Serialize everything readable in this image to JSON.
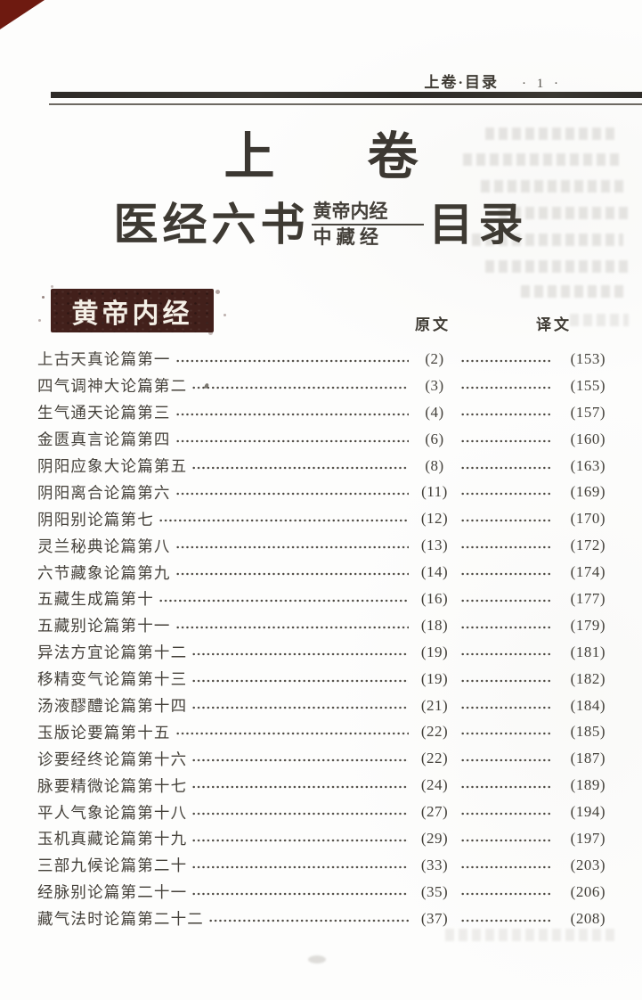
{
  "header": {
    "section_label": "上卷·目录",
    "page_number": "· 1 ·"
  },
  "volume_title": {
    "char_left": "上",
    "char_right": "卷"
  },
  "book_title": {
    "main": "医经六书",
    "annotation_line1": "黄帝内经",
    "annotation_line2": "中 藏 经",
    "tail": "目录"
  },
  "section_banner": {
    "label": "黄帝内经"
  },
  "columns": {
    "original": "原文",
    "translation": "译文"
  },
  "toc": {
    "entries": [
      {
        "title": "上古天真论篇第一",
        "original": "(2)",
        "translation": "(153)"
      },
      {
        "title": "四气调神大论篇第二",
        "original": "(3)",
        "translation": "(155)"
      },
      {
        "title": "生气通天论篇第三",
        "original": "(4)",
        "translation": "(157)"
      },
      {
        "title": "金匮真言论篇第四",
        "original": "(6)",
        "translation": "(160)"
      },
      {
        "title": "阴阳应象大论篇第五",
        "original": "(8)",
        "translation": "(163)"
      },
      {
        "title": "阴阳离合论篇第六",
        "original": "(11)",
        "translation": "(169)"
      },
      {
        "title": "阴阳别论篇第七",
        "original": "(12)",
        "translation": "(170)"
      },
      {
        "title": "灵兰秘典论篇第八",
        "original": "(13)",
        "translation": "(172)"
      },
      {
        "title": "六节藏象论篇第九",
        "original": "(14)",
        "translation": "(174)"
      },
      {
        "title": "五藏生成篇第十",
        "original": "(16)",
        "translation": "(177)"
      },
      {
        "title": "五藏别论篇第十一",
        "original": "(18)",
        "translation": "(179)"
      },
      {
        "title": "异法方宜论篇第十二",
        "original": "(19)",
        "translation": "(181)"
      },
      {
        "title": "移精变气论篇第十三",
        "original": "(19)",
        "translation": "(182)"
      },
      {
        "title": "汤液醪醴论篇第十四",
        "original": "(21)",
        "translation": "(184)"
      },
      {
        "title": "玉版论要篇第十五",
        "original": "(22)",
        "translation": "(185)"
      },
      {
        "title": "诊要经终论篇第十六",
        "original": "(22)",
        "translation": "(187)"
      },
      {
        "title": "脉要精微论篇第十七",
        "original": "(24)",
        "translation": "(189)"
      },
      {
        "title": "平人气象论篇第十八",
        "original": "(27)",
        "translation": "(194)"
      },
      {
        "title": "玉机真藏论篇第十九",
        "original": "(29)",
        "translation": "(197)"
      },
      {
        "title": "三部九候论篇第二十",
        "original": "(33)",
        "translation": "(203)"
      },
      {
        "title": "经脉别论篇第二十一",
        "original": "(35)",
        "translation": "(206)"
      },
      {
        "title": "藏气法时论篇第二十二",
        "original": "(37)",
        "translation": "(208)"
      }
    ]
  },
  "colors": {
    "banner_bg": "#42201b",
    "banner_text": "#f4efe6",
    "corner_fold": "#6e1a10",
    "ink": "#3f3b34",
    "rule_dark": "#2e2b27"
  }
}
